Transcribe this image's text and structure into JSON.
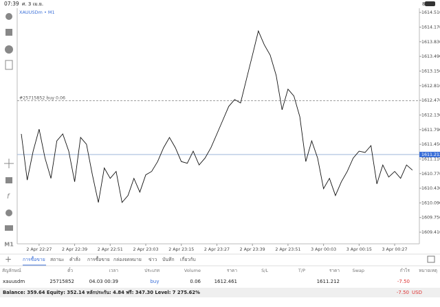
{
  "status_bar": {
    "time": "07:39",
    "date": "ศ. 3 เม.ย.",
    "battery": "84%"
  },
  "toolbar": {
    "timeframe": "M1"
  },
  "chart_data": {
    "type": "line",
    "symbol": "XAUUSDm • M1",
    "color": "#111111",
    "categories": [
      null,
      null,
      null,
      "2 Apr 22:27",
      null,
      null,
      null,
      null,
      null,
      "2 Apr 22:39",
      null,
      null,
      null,
      null,
      null,
      "2 Apr 22:51",
      null,
      null,
      null,
      null,
      null,
      "2 Apr 23:03",
      null,
      null,
      null,
      null,
      null,
      "2 Apr 23:15",
      null,
      null,
      null,
      null,
      null,
      "2 Apr 23:27",
      null,
      null,
      null,
      null,
      null,
      "2 Apr 23:39",
      null,
      null,
      null,
      null,
      null,
      "2 Apr 23:51",
      null,
      null,
      null,
      null,
      null,
      "3 Apr 00:03",
      null,
      null,
      null,
      null,
      null,
      "3 Apr 00:15",
      null,
      null,
      null,
      null,
      null,
      "3 Apr 00:27",
      null,
      null,
      null
    ],
    "values": [
      1611.69,
      1610.62,
      1611.29,
      1611.8,
      1611.13,
      1610.66,
      1611.53,
      1611.69,
      1611.29,
      1610.58,
      1611.61,
      1611.45,
      1610.74,
      1610.1,
      1610.9,
      1610.66,
      1610.82,
      1610.1,
      1610.26,
      1610.66,
      1610.34,
      1610.74,
      1610.82,
      1611.05,
      1611.37,
      1611.61,
      1611.37,
      1611.05,
      1611.01,
      1611.29,
      1610.97,
      1611.13,
      1611.37,
      1611.69,
      1612.01,
      1612.33,
      1612.49,
      1612.41,
      1612.97,
      1613.52,
      1614.08,
      1613.76,
      1613.52,
      1613.05,
      1612.25,
      1612.73,
      1612.57,
      1612.09,
      1611.05,
      1611.53,
      1611.13,
      1610.42,
      1610.66,
      1610.26,
      1610.58,
      1610.82,
      1611.13,
      1611.29,
      1611.26,
      1611.42,
      1610.53,
      1610.97,
      1610.69,
      1610.82,
      1610.66,
      1610.97,
      1610.85
    ],
    "ylim": [
      1609.14,
      1614.64
    ],
    "yticks": [
      {
        "value": 1614.51,
        "label": "1614.510"
      },
      {
        "value": 1614.17,
        "label": "1614.170"
      },
      {
        "value": 1613.83,
        "label": "1613.830"
      },
      {
        "value": 1613.49,
        "label": "1613.490"
      },
      {
        "value": 1613.15,
        "label": "1613.150"
      },
      {
        "value": 1612.81,
        "label": "1612.810"
      },
      {
        "value": 1612.47,
        "label": "1612.470"
      },
      {
        "value": 1612.13,
        "label": "1612.130"
      },
      {
        "value": 1611.79,
        "label": "1611.790"
      },
      {
        "value": 1611.45,
        "label": "1611.450"
      },
      {
        "value": 1611.11,
        "label": "1611.110"
      },
      {
        "value": 1610.77,
        "label": "1610.770"
      },
      {
        "value": 1610.43,
        "label": "1610.430"
      },
      {
        "value": 1610.09,
        "label": "1610.090"
      },
      {
        "value": 1609.75,
        "label": "1609.750"
      },
      {
        "value": 1609.41,
        "label": "1609.410"
      }
    ],
    "order_line": {
      "label": "#25715852 buy 0.06",
      "value": 1612.461,
      "color": "#999999"
    },
    "price_line": {
      "value": 1611.212,
      "color": "#9db4d8"
    }
  },
  "tabs": [
    "การซื้อขาย",
    "สถานะ",
    "คำสั่ง",
    "การซื้อขาย",
    "กล่องจดหมาย",
    "ข่าว",
    "บันทึก",
    "เกี่ยวกับ"
  ],
  "table": {
    "headers": [
      "สัญลักษณ์",
      "ตั๋ว",
      "เวลา",
      "ประเภท",
      "Volume",
      "ราคา",
      "S/L",
      "T/P",
      "ราคา",
      "Swap",
      "กำไร",
      "หมายเหตุ"
    ],
    "rows": [
      [
        "xauusdm",
        "25715852",
        "04.03 00:39",
        "buy",
        "0.06",
        "1612.461",
        null,
        null,
        "1611.212",
        null,
        "-7.50",
        null
      ]
    ]
  },
  "footer": {
    "summary": "Balance: 359.64 Equity: 352.14 หลักประกัน: 4.84 ฟรี: 347.30 Level: 7 275.62%",
    "profit": "-7.50",
    "currency": "USD"
  }
}
